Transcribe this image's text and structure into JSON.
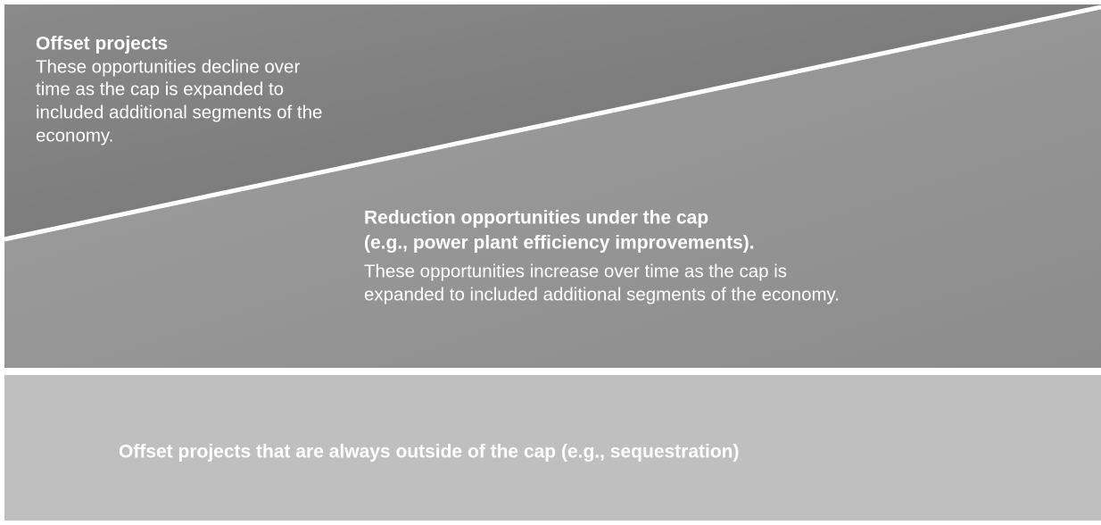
{
  "upper_region": {
    "title": "Offset projects",
    "lines": [
      "These opportunities decline over",
      "time as the cap is expanded to",
      "included additional segments of the",
      "economy."
    ]
  },
  "lower_region": {
    "title_lines": [
      "Reduction opportunities under the cap",
      "(e.g., power plant efficiency improvements)."
    ],
    "lines": [
      "These opportunities increase over time as the cap is",
      "expanded to included additional segments of the economy."
    ]
  },
  "bottom_box": {
    "label": "Offset projects that are always outside of the cap (e.g., sequestration)"
  }
}
